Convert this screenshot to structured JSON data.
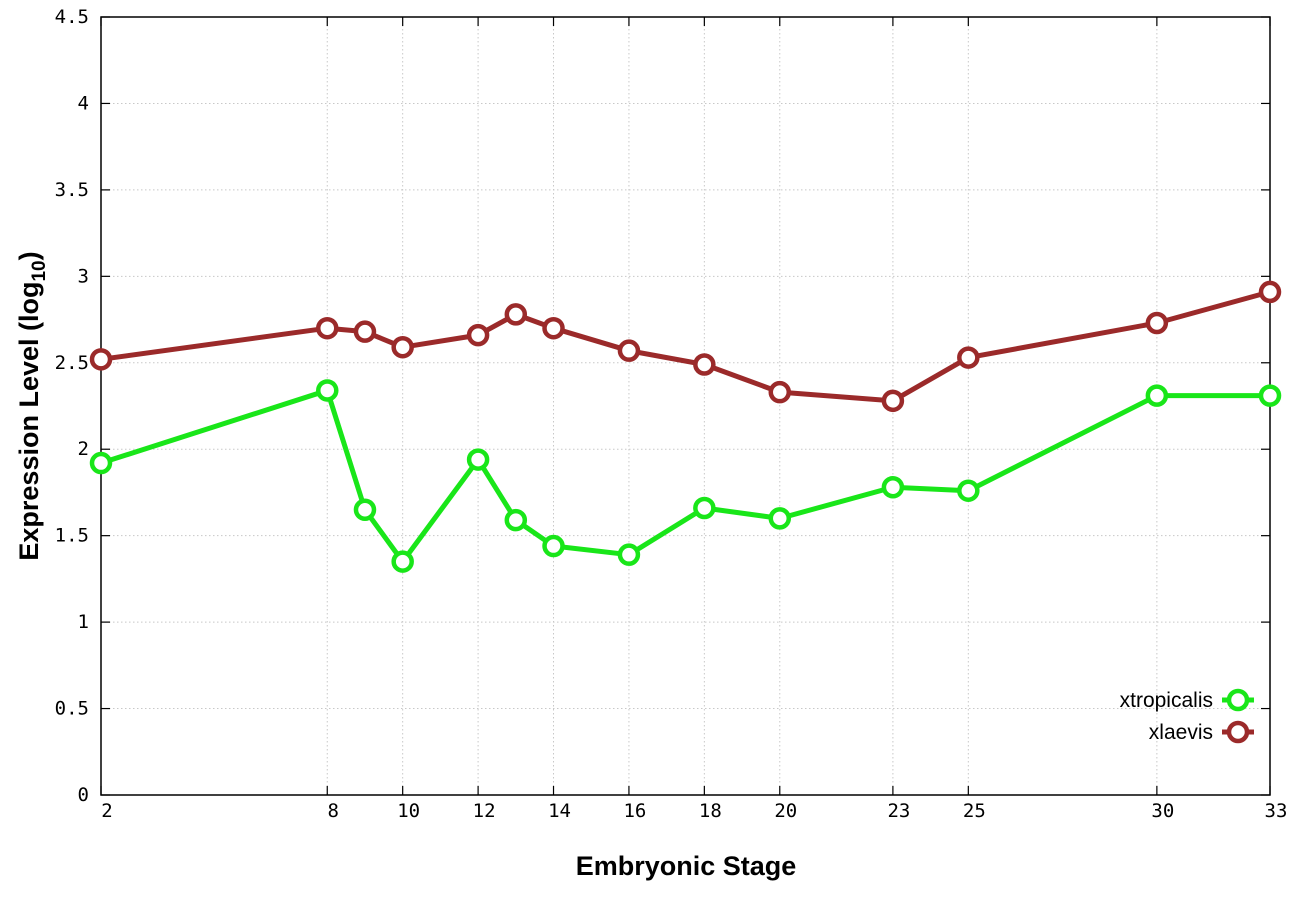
{
  "chart_data": {
    "type": "line",
    "xlabel": "Embryonic Stage",
    "ylabel": {
      "prefix": "Expression Level (log",
      "subscript": "10",
      "suffix": ")"
    },
    "x_tick_labels": [
      "2",
      "8",
      "10",
      "12",
      "14",
      "16",
      "18",
      "20",
      "23",
      "25",
      "30",
      "33"
    ],
    "y_ticks": [
      0,
      0.5,
      1,
      1.5,
      2,
      2.5,
      3,
      3.5,
      4,
      4.5
    ],
    "y_tick_labels": [
      "0",
      "0.5",
      "1",
      "1.5",
      "2",
      "2.5",
      "3",
      "3.5",
      "4",
      "4.5"
    ],
    "ylim": [
      0,
      4.5
    ],
    "grid": true,
    "legend_position": "bottom-right",
    "x": [
      "2",
      "8",
      "9",
      "10",
      "12",
      "13",
      "14",
      "16",
      "18",
      "20",
      "23",
      "25",
      "30",
      "33"
    ],
    "series": [
      {
        "name": "xtropicalis",
        "color": "#19e619",
        "values": [
          1.92,
          2.34,
          1.65,
          1.35,
          1.94,
          1.59,
          1.44,
          1.39,
          1.66,
          1.6,
          1.78,
          1.76,
          2.31,
          2.31
        ]
      },
      {
        "name": "xlaevis",
        "color": "#9b2a2a",
        "values": [
          2.52,
          2.7,
          2.68,
          2.59,
          2.66,
          2.78,
          2.7,
          2.57,
          2.49,
          2.33,
          2.28,
          2.53,
          2.73,
          2.91
        ]
      }
    ]
  }
}
